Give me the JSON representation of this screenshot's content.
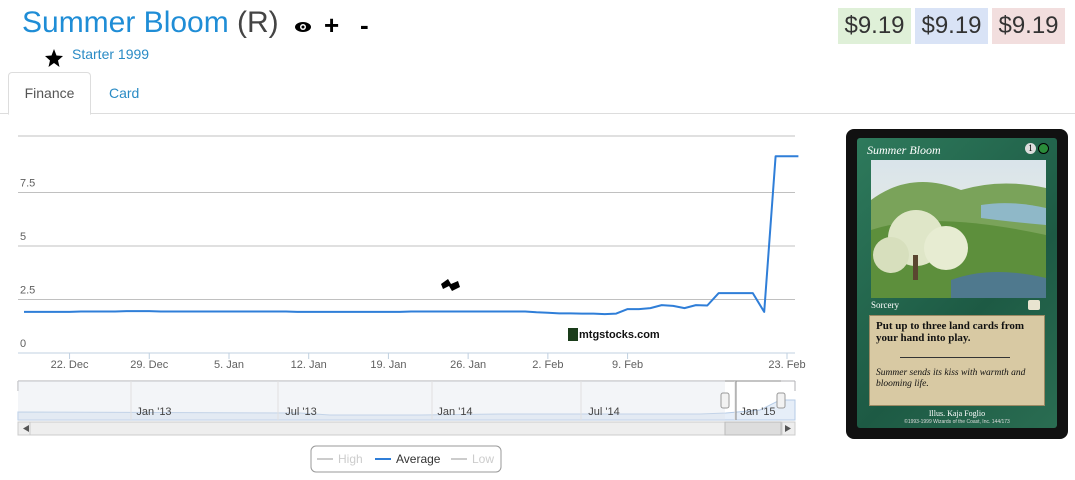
{
  "header": {
    "title": "Summer Bloom",
    "rarity": "(R)",
    "add_button": "+",
    "remove_button": "-",
    "set_name": "Starter 1999"
  },
  "prices": [
    "$9.19",
    "$9.19",
    "$9.19"
  ],
  "tabs": [
    "Finance",
    "Card"
  ],
  "chart_data": {
    "type": "line",
    "categories": [
      null,
      null,
      null,
      null,
      "22. Dec",
      null,
      null,
      null,
      null,
      null,
      null,
      "29. Dec",
      null,
      null,
      null,
      null,
      null,
      null,
      "5. Jan",
      null,
      null,
      null,
      null,
      null,
      null,
      "12. Jan",
      null,
      null,
      null,
      null,
      null,
      null,
      "19. Jan",
      null,
      null,
      null,
      null,
      null,
      null,
      "26. Jan",
      null,
      null,
      null,
      null,
      null,
      null,
      "2. Feb",
      null,
      null,
      null,
      null,
      null,
      null,
      "9. Feb",
      null,
      null,
      null,
      null,
      null,
      null,
      null,
      null,
      null,
      null,
      null,
      null,
      null,
      "23. Feb",
      null
    ],
    "series": [
      {
        "name": "High",
        "color": "#cccccc",
        "visible": false
      },
      {
        "name": "Average",
        "color": "#2f7ed8",
        "visible": true,
        "values": [
          1.92,
          1.92,
          1.92,
          1.92,
          1.92,
          1.94,
          1.94,
          1.94,
          1.94,
          1.96,
          1.96,
          1.96,
          1.94,
          1.94,
          1.94,
          1.94,
          1.94,
          1.94,
          1.94,
          1.94,
          1.94,
          1.94,
          1.94,
          1.94,
          1.92,
          1.92,
          1.92,
          1.92,
          1.92,
          1.92,
          1.92,
          1.92,
          1.92,
          1.92,
          1.94,
          1.94,
          1.94,
          1.94,
          1.94,
          1.94,
          1.94,
          1.94,
          1.94,
          1.94,
          1.94,
          1.9,
          1.88,
          1.85,
          1.85,
          1.84,
          1.84,
          1.82,
          1.84,
          2.05,
          2.05,
          2.1,
          2.24,
          2.2,
          2.1,
          2.24,
          2.22,
          2.8,
          2.8,
          2.8,
          2.8,
          1.92,
          9.19,
          9.19,
          9.19
        ]
      },
      {
        "name": "Low",
        "color": "#cccccc",
        "visible": false
      }
    ],
    "ylim": [
      0,
      10
    ],
    "yticks": [
      0,
      2.5,
      5,
      7.5
    ],
    "grid": true,
    "watermark": "mtgstocks.com",
    "navigator_labels": [
      "Jan '13",
      "Jul '13",
      "Jan '14",
      "Jul '14",
      "Jan '15"
    ]
  },
  "card": {
    "name": "Summer Bloom",
    "mana": "1",
    "type_line": "Sorcery",
    "rules_text": "Put up to three land cards from your hand into play.",
    "flavor_text": "Summer sends its kiss with warmth and blooming life.",
    "illustrator": "Illus. Kaja Foglio",
    "copyright": "©1993-1999 Wizards of the Coast, Inc. 144/173"
  }
}
